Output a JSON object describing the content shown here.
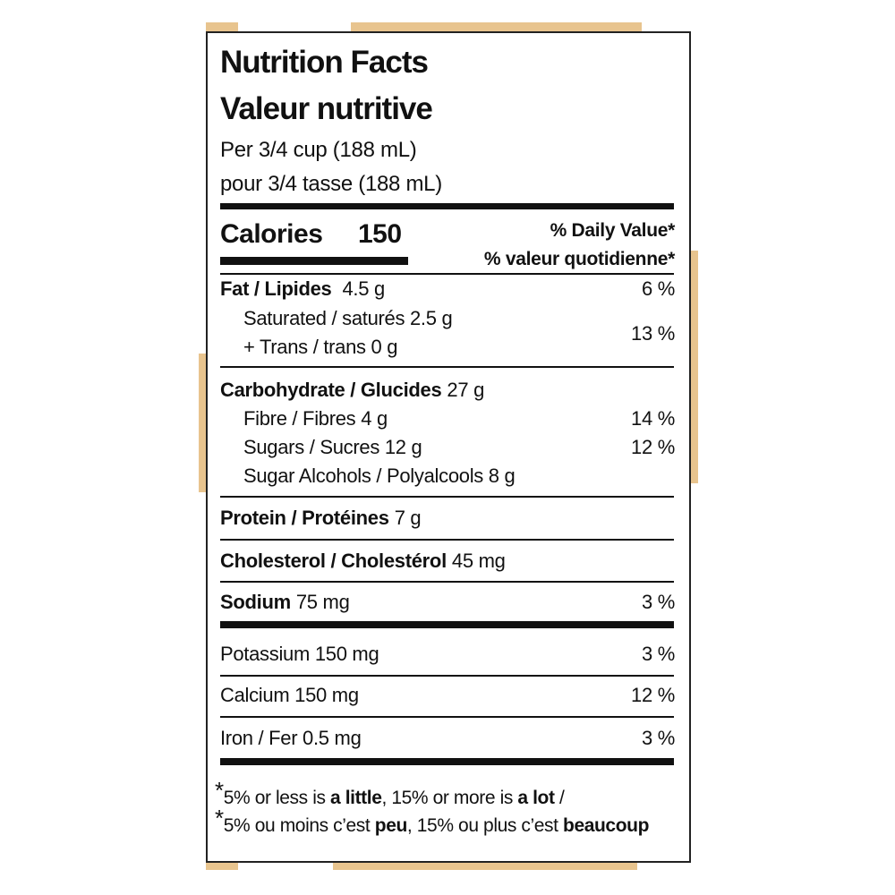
{
  "title_en": "Nutrition Facts",
  "title_fr": "Valeur nutritive",
  "serving_en": "Per 3/4 cup (188 mL)",
  "serving_fr": "pour 3/4 tasse (188 mL)",
  "calories": {
    "label": "Calories",
    "value": "150"
  },
  "dv_header_en": "% Daily Value*",
  "dv_header_fr": "% valeur quotidienne*",
  "fat": {
    "name": "Fat / Lipides",
    "amount": "4.5 g",
    "dv": "6 %"
  },
  "saturated_trans": {
    "saturated": "Saturated / saturés 2.5 g",
    "trans": "+ Trans / trans 0 g",
    "dv": "13 %"
  },
  "carbohydrate": {
    "name": "Carbohydrate / Glucides",
    "amount": "27 g"
  },
  "fibre": {
    "text": "Fibre / Fibres 4 g",
    "dv": "14 %"
  },
  "sugars": {
    "text": "Sugars / Sucres 12 g",
    "dv": "12 %"
  },
  "sugar_alcohols": {
    "text": "Sugar Alcohols / Polyalcools 8 g"
  },
  "protein": {
    "name": "Protein / Protéines",
    "amount": "7 g"
  },
  "cholesterol": {
    "name": "Cholesterol / Cholestérol",
    "amount": "45 mg"
  },
  "sodium": {
    "name": "Sodium",
    "amount": "75 mg",
    "dv": "3 %"
  },
  "potassium": {
    "text": "Potassium 150 mg",
    "dv": "3 %"
  },
  "calcium": {
    "text": "Calcium 150 mg",
    "dv": "12 %"
  },
  "iron": {
    "text": "Iron / Fer 0.5 mg",
    "dv": "3 %"
  },
  "footnote": {
    "en": {
      "star": "*",
      "a": "5% or less is ",
      "b": "a little",
      "c": ", 15% or more is ",
      "d": "a lot",
      "e": " /"
    },
    "fr": {
      "star": "*",
      "a": "5% ou moins c’est ",
      "b": "peu",
      "c": ", 15% ou plus c’est ",
      "d": "beaucoup"
    }
  }
}
